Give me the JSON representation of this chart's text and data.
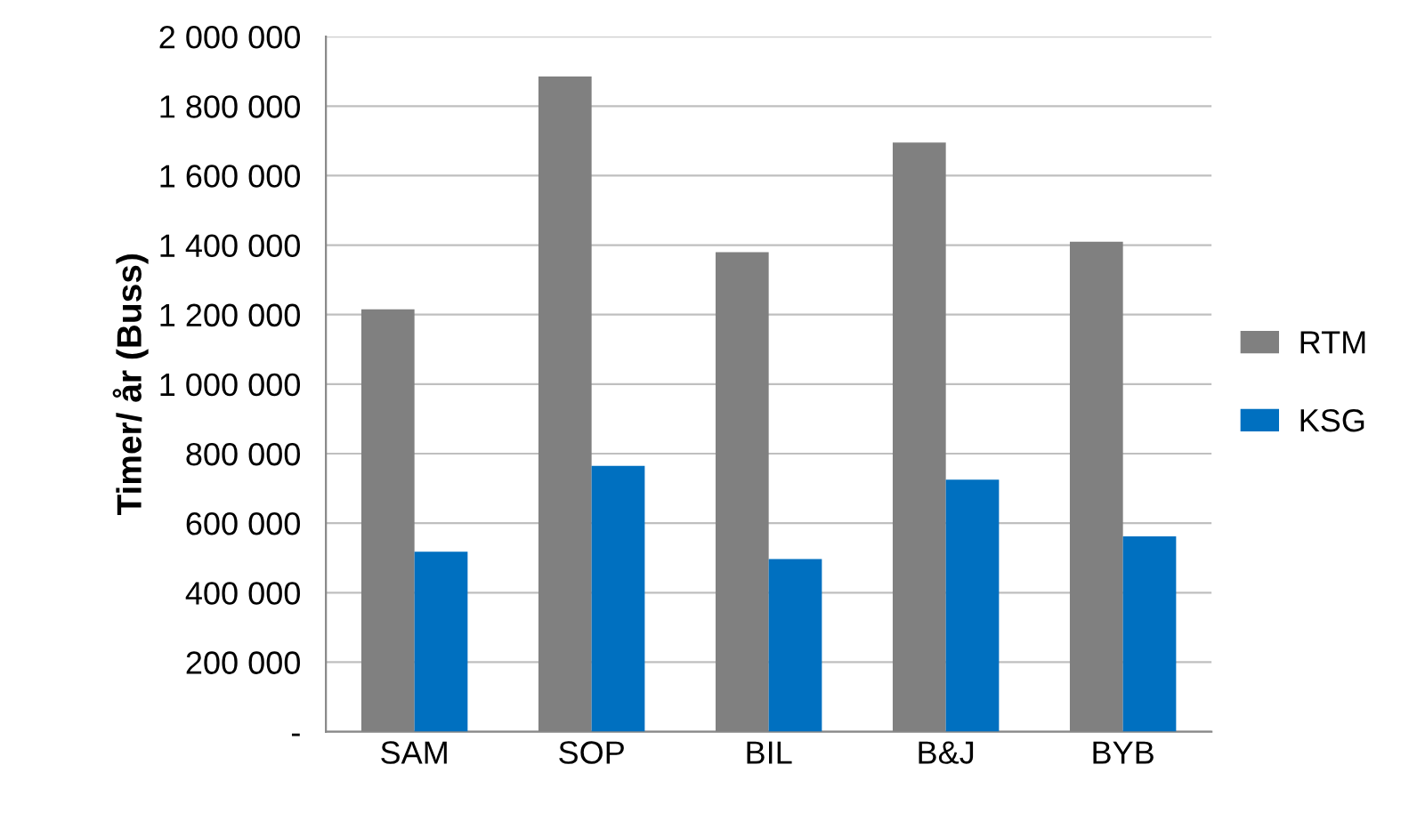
{
  "chart_data": {
    "type": "bar",
    "ylabel": "Timer/ år (Buss)",
    "categories": [
      "SAM",
      "SOP",
      "BIL",
      "B&J",
      "BYB"
    ],
    "series": [
      {
        "name": "RTM",
        "color": "#808080",
        "values": [
          1215000,
          1885000,
          1380000,
          1695000,
          1410000
        ]
      },
      {
        "name": "KSG",
        "color": "#0070c0",
        "values": [
          518000,
          765000,
          497000,
          725000,
          562000
        ]
      }
    ],
    "ylim": [
      0,
      2000000
    ],
    "yticks": [
      {
        "value": 0,
        "label": "-"
      },
      {
        "value": 200000,
        "label": "200 000"
      },
      {
        "value": 400000,
        "label": "400 000"
      },
      {
        "value": 600000,
        "label": "600 000"
      },
      {
        "value": 800000,
        "label": "800 000"
      },
      {
        "value": 1000000,
        "label": "1 000 000"
      },
      {
        "value": 1200000,
        "label": "1 200 000"
      },
      {
        "value": 1400000,
        "label": "1 400 000"
      },
      {
        "value": 1600000,
        "label": "1 600 000"
      },
      {
        "value": 1800000,
        "label": "1 800 000"
      },
      {
        "value": 2000000,
        "label": "2 000 000"
      }
    ],
    "grid": "y",
    "legend": "right"
  }
}
